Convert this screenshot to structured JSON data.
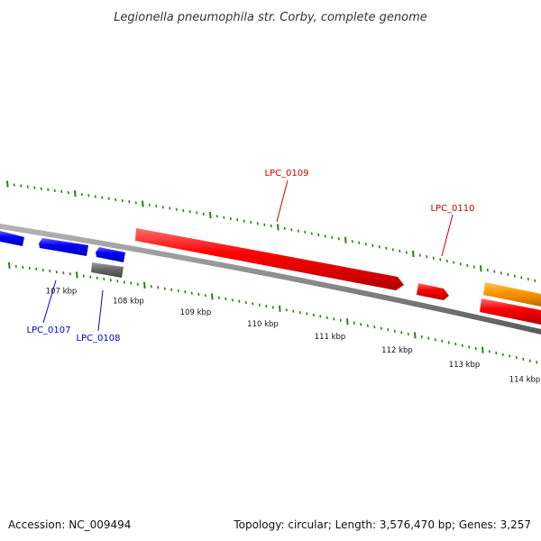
{
  "title": "Legionella pneumophila str. Corby, complete genome",
  "footer": {
    "accession": "Accession: NC_009494",
    "summary": "Topology: circular; Length: 3,576,470 bp; Genes: 3,257"
  },
  "colors": {
    "backbone": "#8c8c8c",
    "tick": "#2f7d1c",
    "forward_gene": "#ff0000",
    "reverse_gene": "#0000ff",
    "other_gene": "#6e6e6e",
    "orange_gene": "#ff9900",
    "forward_label": "#cc0000",
    "reverse_label": "#0000cc"
  },
  "axis": {
    "unit": "kbp",
    "labels": [
      "107 kbp",
      "108 kbp",
      "109 kbp",
      "110 kbp",
      "111 kbp",
      "112 kbp",
      "113 kbp",
      "114 kbp"
    ]
  },
  "genes": {
    "labeled": [
      {
        "id": "LPC_0107",
        "strand": "reverse"
      },
      {
        "id": "LPC_0108",
        "strand": "reverse"
      },
      {
        "id": "LPC_0109",
        "strand": "forward"
      },
      {
        "id": "LPC_0110",
        "strand": "forward"
      }
    ]
  }
}
